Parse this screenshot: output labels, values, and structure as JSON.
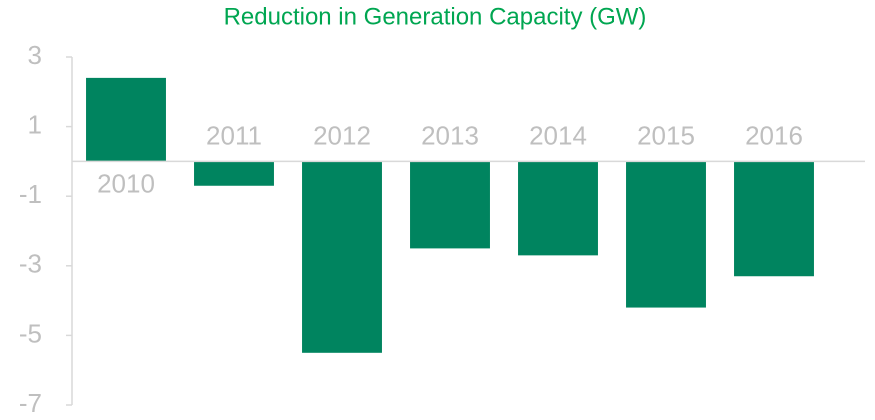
{
  "chart_data": {
    "type": "bar",
    "title": "Reduction in Generation Capacity (GW)",
    "categories": [
      "2010",
      "2011",
      "2012",
      "2013",
      "2014",
      "2015",
      "2016"
    ],
    "values": [
      2.4,
      -0.7,
      -5.5,
      -2.5,
      -2.7,
      -4.2,
      -3.3
    ],
    "color": "#00845f",
    "ylim": [
      -7,
      3
    ],
    "yticks": [
      3,
      1,
      -1,
      -3,
      -5,
      -7
    ],
    "grid": false
  }
}
